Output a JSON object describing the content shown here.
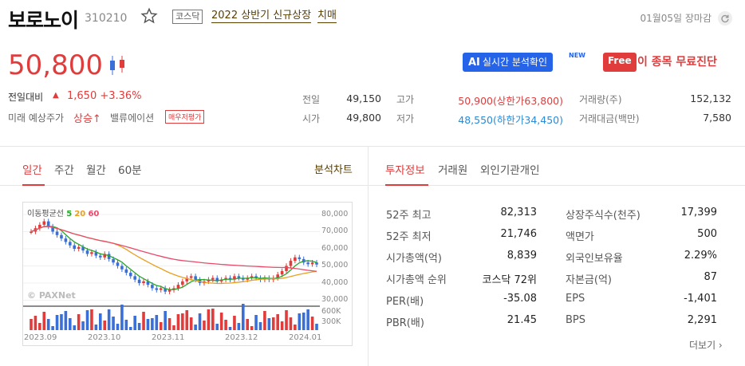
{
  "header": {
    "name": "보로노이",
    "code": "310210",
    "market": "코스닥",
    "tag1": "2022 상반기 신규상장",
    "tag2": "치매",
    "close_date": "01월05일 장마감"
  },
  "price": {
    "current": "50,800",
    "change_label": "전일대비",
    "change_arrow": "▲",
    "change_value": "1,650 +3.36%",
    "future_label": "미래 예상주가",
    "future_value": "상승↑",
    "valuation_label": "밸류에이션",
    "valuation_value": "매우저평가"
  },
  "promos": {
    "ai_prefix": "AI",
    "ai_label": "실시간 분석확인",
    "new_badge": "NEW",
    "free_badge": "Free",
    "free_label": "이 종목 무료진단"
  },
  "quote": {
    "prev_close_label": "전일",
    "prev_close": "49,150",
    "open_label": "시가",
    "open": "49,800",
    "high_label": "고가",
    "high": "50,900(상한가63,800)",
    "low_label": "저가",
    "low": "48,550(하한가34,450)",
    "volume_label": "거래량(주)",
    "volume": "152,132",
    "amount_label": "거래대금(백만)",
    "amount": "7,580"
  },
  "chart_tabs": [
    "일간",
    "주간",
    "월간",
    "60분"
  ],
  "analysis_chart_link": "분석차트",
  "info_tabs": [
    "투자정보",
    "거래원",
    "외인기관개인"
  ],
  "chart": {
    "legend_title": "이동평균선",
    "ma5": "5",
    "ma20": "20",
    "ma60": "60",
    "watermark": "© PAXNet",
    "y_ticks": [
      "80,000",
      "70,000",
      "60,000",
      "50,000",
      "40,000",
      "30,000"
    ],
    "vol_ticks": [
      "600K",
      "300K"
    ],
    "x_ticks": [
      "2023.09",
      "2023.10",
      "2023.11",
      "2023.12",
      "2024.01"
    ],
    "colors": {
      "up": "#e03c3c",
      "down": "#3a6fd8",
      "ma5": "#2aa52a",
      "ma20": "#e8a020",
      "ma60": "#e84a6a"
    }
  },
  "investment_info": {
    "left": [
      {
        "label": "52주 최고",
        "value": "82,313"
      },
      {
        "label": "52주 최저",
        "value": "21,746"
      },
      {
        "label": "시가총액(억)",
        "value": "8,839"
      },
      {
        "label": "시가총액 순위",
        "value": "코스닥 72위"
      },
      {
        "label": "PER(배)",
        "value": "-35.08"
      },
      {
        "label": "PBR(배)",
        "value": "21.45"
      }
    ],
    "right": [
      {
        "label": "상장주식수(천주)",
        "value": "17,399"
      },
      {
        "label": "액면가",
        "value": "500"
      },
      {
        "label": "외국인보유율",
        "value": "2.29%"
      },
      {
        "label": "자본금(억)",
        "value": "87"
      },
      {
        "label": "EPS",
        "value": "-1,401"
      },
      {
        "label": "BPS",
        "value": "2,291"
      }
    ],
    "more": "더보기 ›"
  }
}
